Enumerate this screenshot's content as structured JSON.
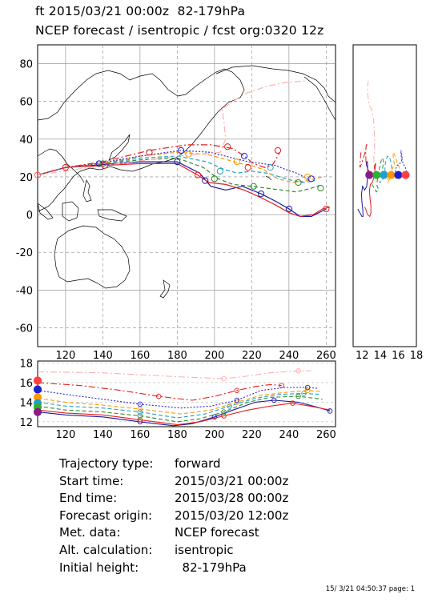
{
  "header": {
    "line1": "ft 2015/03/21 00:00z  82-179hPa",
    "line2": "NCEP forecast / isentropic / fcst org:0320 12z"
  },
  "chart_data": [
    {
      "type": "line",
      "name": "map",
      "xlim": [
        105,
        265
      ],
      "ylim": [
        -70,
        90
      ],
      "x_ticks": [
        120,
        140,
        160,
        180,
        200,
        220,
        240,
        260
      ],
      "y_ticks": [
        -60,
        -40,
        -20,
        0,
        20,
        40,
        60,
        80
      ],
      "grid": true,
      "series": [
        {
          "color": "#1a1aa0",
          "style": "solid",
          "points": [
            [
              105,
              21
            ],
            [
              120,
              25
            ],
            [
              140,
              26.5
            ],
            [
              160,
              28
            ],
            [
              180,
              28
            ],
            [
              192,
              22
            ],
            [
              198,
              15
            ],
            [
              206,
              13
            ],
            [
              215,
              15
            ],
            [
              225,
              11
            ],
            [
              233,
              7
            ],
            [
              240,
              3
            ],
            [
              246,
              -1
            ],
            [
              252,
              -1
            ],
            [
              256,
              1
            ],
            [
              260,
              3
            ]
          ]
        },
        {
          "color": "#e61e1e",
          "style": "solid",
          "points": [
            [
              105,
              21
            ],
            [
              120,
              25
            ],
            [
              140,
              26
            ],
            [
              160,
              27
            ],
            [
              180,
              27
            ],
            [
              191,
              21
            ],
            [
              197,
              17
            ],
            [
              206,
              16
            ],
            [
              216,
              13
            ],
            [
              225,
              9
            ],
            [
              233,
              5
            ],
            [
              240,
              1
            ],
            [
              246,
              -1
            ],
            [
              253,
              0
            ],
            [
              258,
              3
            ],
            [
              262,
              4
            ]
          ]
        },
        {
          "color": "#2e8b2e",
          "style": "dashed",
          "points": [
            [
              105,
              21
            ],
            [
              120,
              25
            ],
            [
              140,
              27
            ],
            [
              160,
              29
            ],
            [
              180,
              30
            ],
            [
              194,
              25
            ],
            [
              202,
              19
            ],
            [
              210,
              16
            ],
            [
              220,
              15
            ],
            [
              228,
              14
            ],
            [
              236,
              13
            ],
            [
              244,
              12
            ],
            [
              252,
              14
            ],
            [
              258,
              16
            ]
          ]
        },
        {
          "color": "#20a0c8",
          "style": "dashed",
          "points": [
            [
              105,
              21
            ],
            [
              120,
              25
            ],
            [
              140,
              27
            ],
            [
              160,
              30
            ],
            [
              180,
              31
            ],
            [
              196,
              28
            ],
            [
              205,
              24
            ],
            [
              212,
              22
            ],
            [
              220,
              23
            ],
            [
              228,
              22
            ],
            [
              235,
              20
            ],
            [
              242,
              18
            ],
            [
              248,
              17
            ],
            [
              254,
              18
            ]
          ]
        },
        {
          "color": "#ff9900",
          "style": "dashed",
          "points": [
            [
              105,
              21
            ],
            [
              120,
              25
            ],
            [
              140,
              27
            ],
            [
              160,
              31
            ],
            [
              180,
              33
            ],
            [
              196,
              32
            ],
            [
              207,
              29
            ],
            [
              214,
              27
            ],
            [
              220,
              26
            ],
            [
              226,
              24
            ],
            [
              234,
              19
            ],
            [
              242,
              17
            ],
            [
              250,
              18
            ],
            [
              258,
              20
            ]
          ]
        },
        {
          "color": "#2828d8",
          "style": "dotted",
          "points": [
            [
              105,
              21
            ],
            [
              120,
              25
            ],
            [
              137,
              27
            ],
            [
              160,
              31
            ],
            [
              182,
              34
            ],
            [
              198,
              33
            ],
            [
              210,
              30
            ],
            [
              218,
              28
            ],
            [
              226,
              27
            ],
            [
              233,
              26
            ],
            [
              238,
              24
            ],
            [
              244,
              22
            ],
            [
              250,
              19
            ]
          ]
        },
        {
          "color": "#e61e1e",
          "style": "dashdot",
          "points": [
            [
              105,
              21
            ],
            [
              120,
              25
            ],
            [
              140,
              28
            ],
            [
              165,
              34
            ],
            [
              185,
              37
            ],
            [
              198,
              37
            ],
            [
              210,
              35
            ],
            [
              216,
              31
            ],
            [
              221,
              27
            ],
            [
              227,
              25
            ],
            [
              231,
              26
            ],
            [
              234,
              31
            ],
            [
              235,
              33
            ]
          ]
        },
        {
          "color": "#ffb0b0",
          "style": "dashdot",
          "points": [
            [
              105,
              21
            ],
            [
              140,
              26
            ],
            [
              180,
              31
            ],
            [
              203,
              33
            ],
            [
              206,
              40
            ],
            [
              205,
              50
            ],
            [
              204,
              56
            ],
            [
              207,
              58
            ],
            [
              216,
              64
            ],
            [
              228,
              68
            ],
            [
              238,
              70
            ],
            [
              250,
              71
            ]
          ]
        }
      ],
      "markers": [
        {
          "x": 105,
          "y": 21,
          "color": "#ff6060"
        },
        {
          "x": 120,
          "y": 25,
          "color": "#e61e1e"
        },
        {
          "x": 138,
          "y": 27,
          "color": "#1a1aa0"
        },
        {
          "x": 140,
          "y": 27,
          "color": "#2e8b2e"
        },
        {
          "x": 141,
          "y": 26,
          "color": "#e61e1e"
        },
        {
          "x": 165,
          "y": 33,
          "color": "#e61e1e"
        },
        {
          "x": 180,
          "y": 28,
          "color": "#1a1aa0"
        },
        {
          "x": 182,
          "y": 34,
          "color": "#2828d8"
        },
        {
          "x": 186,
          "y": 32,
          "color": "#ff9900"
        },
        {
          "x": 191,
          "y": 21,
          "color": "#e61e1e"
        },
        {
          "x": 195,
          "y": 18,
          "color": "#1a1aa0"
        },
        {
          "x": 200,
          "y": 19,
          "color": "#2e8b2e"
        },
        {
          "x": 203,
          "y": 23,
          "color": "#20a0c8"
        },
        {
          "x": 207,
          "y": 36,
          "color": "#e61e1e"
        },
        {
          "x": 212,
          "y": 28,
          "color": "#ff9900"
        },
        {
          "x": 216,
          "y": 31,
          "color": "#2828d8"
        },
        {
          "x": 218,
          "y": 25,
          "color": "#e61e1e"
        },
        {
          "x": 221,
          "y": 15,
          "color": "#2e8b2e"
        },
        {
          "x": 225,
          "y": 11,
          "color": "#1a1aa0"
        },
        {
          "x": 230,
          "y": 25,
          "color": "#20a0c8"
        },
        {
          "x": 234,
          "y": 34,
          "color": "#e61e1e"
        },
        {
          "x": 240,
          "y": 3,
          "color": "#1a1aa0"
        },
        {
          "x": 245,
          "y": 17,
          "color": "#2e8b2e"
        },
        {
          "x": 250,
          "y": 20,
          "color": "#ff9900"
        },
        {
          "x": 252,
          "y": 19,
          "color": "#2828d8"
        },
        {
          "x": 257,
          "y": 14,
          "color": "#2e8b2e"
        },
        {
          "x": 260,
          "y": 3,
          "color": "#e61e1e"
        }
      ]
    },
    {
      "type": "line",
      "name": "vertical-side",
      "xlim": [
        11,
        18
      ],
      "x_ticks": [
        12,
        14,
        16,
        18
      ],
      "ylim": [
        -70,
        90
      ],
      "note_markers_at_start": [
        12.8,
        13.6,
        14.4,
        15.2,
        16.0,
        16.8
      ]
    },
    {
      "type": "line",
      "name": "height-section",
      "xlim": [
        105,
        265
      ],
      "ylim": [
        11.5,
        18.2
      ],
      "x_ticks": [
        120,
        140,
        160,
        180,
        200,
        220,
        240,
        260
      ],
      "y_ticks": [
        12,
        14,
        16,
        18
      ],
      "series": [
        {
          "color": "#1a1aa0",
          "style": "solid",
          "points": [
            [
              105,
              13.0
            ],
            [
              120,
              12.7
            ],
            [
              140,
              12.5
            ],
            [
              160,
              12.0
            ],
            [
              178,
              11.6
            ],
            [
              188,
              11.8
            ],
            [
              200,
              12.5
            ],
            [
              210,
              13.2
            ],
            [
              222,
              14.0
            ],
            [
              232,
              14.2
            ],
            [
              245,
              14.0
            ],
            [
              255,
              13.5
            ],
            [
              262,
              13.1
            ]
          ]
        },
        {
          "color": "#e61e1e",
          "style": "solid",
          "points": [
            [
              105,
              13.2
            ],
            [
              120,
              12.9
            ],
            [
              140,
              12.7
            ],
            [
              160,
              12.2
            ],
            [
              180,
              11.7
            ],
            [
              192,
              12.0
            ],
            [
              205,
              12.6
            ],
            [
              218,
              13.2
            ],
            [
              230,
              13.6
            ],
            [
              242,
              13.9
            ],
            [
              254,
              13.5
            ],
            [
              262,
              13.2
            ]
          ]
        },
        {
          "color": "#2e8b2e",
          "style": "dashed",
          "points": [
            [
              105,
              13.6
            ],
            [
              120,
              13.2
            ],
            [
              140,
              13.0
            ],
            [
              160,
              12.6
            ],
            [
              180,
              12.0
            ],
            [
              192,
              12.3
            ],
            [
              205,
              13.0
            ],
            [
              218,
              14.0
            ],
            [
              230,
              14.5
            ],
            [
              245,
              14.6
            ],
            [
              258,
              14.3
            ]
          ]
        },
        {
          "color": "#20a0c8",
          "style": "dashed",
          "points": [
            [
              105,
              14.0
            ],
            [
              120,
              13.6
            ],
            [
              140,
              13.4
            ],
            [
              160,
              13.0
            ],
            [
              180,
              12.4
            ],
            [
              195,
              12.8
            ],
            [
              208,
              13.6
            ],
            [
              222,
              14.4
            ],
            [
              235,
              14.8
            ],
            [
              248,
              14.9
            ],
            [
              256,
              14.8
            ]
          ]
        },
        {
          "color": "#ff9900",
          "style": "dashed",
          "points": [
            [
              105,
              14.4
            ],
            [
              120,
              14.0
            ],
            [
              140,
              13.7
            ],
            [
              160,
              13.3
            ],
            [
              182,
              12.8
            ],
            [
              198,
              13.2
            ],
            [
              212,
              14.0
            ],
            [
              225,
              14.7
            ],
            [
              238,
              15.0
            ],
            [
              250,
              15.2
            ],
            [
              258,
              15.1
            ]
          ]
        },
        {
          "color": "#2828d8",
          "style": "dotted",
          "points": [
            [
              105,
              15.2
            ],
            [
              120,
              14.8
            ],
            [
              140,
              14.3
            ],
            [
              160,
              13.8
            ],
            [
              182,
              13.4
            ],
            [
              198,
              13.6
            ],
            [
              212,
              14.2
            ],
            [
              225,
              15.2
            ],
            [
              238,
              15.5
            ],
            [
              250,
              15.5
            ],
            [
              256,
              15.4
            ]
          ]
        },
        {
          "color": "#e61e1e",
          "style": "dashdot",
          "points": [
            [
              105,
              16.0
            ],
            [
              128,
              15.7
            ],
            [
              150,
              15.2
            ],
            [
              170,
              14.6
            ],
            [
              188,
              14.2
            ],
            [
              200,
              14.6
            ],
            [
              212,
              15.2
            ],
            [
              222,
              15.6
            ],
            [
              230,
              15.8
            ],
            [
              236,
              15.7
            ]
          ]
        },
        {
          "color": "#ffb0b0",
          "style": "dashdot",
          "points": [
            [
              105,
              17.1
            ],
            [
              140,
              17.0
            ],
            [
              180,
              16.6
            ],
            [
              205,
              16.4
            ],
            [
              215,
              16.6
            ],
            [
              230,
              17.0
            ],
            [
              245,
              17.2
            ],
            [
              252,
              17.2
            ]
          ]
        }
      ],
      "start_markers": [
        {
          "y": 16.2,
          "color": "#ff4040"
        },
        {
          "y": 15.3,
          "color": "#2020d0"
        },
        {
          "y": 14.5,
          "color": "#ff9900"
        },
        {
          "y": 13.9,
          "color": "#20a0c8"
        },
        {
          "y": 13.5,
          "color": "#30b030"
        },
        {
          "y": 13.0,
          "color": "#8a1a8a"
        }
      ]
    }
  ],
  "info": [
    {
      "label": "Trajectory type:",
      "value": "forward"
    },
    {
      "label": "Start time:",
      "value": "2015/03/21 00:00z"
    },
    {
      "label": "End time:",
      "value": "2015/03/28 00:00z"
    },
    {
      "label": "Forecast origin:",
      "value": "2015/03/20 12:00z"
    },
    {
      "label": "Met. data:",
      "value": "NCEP forecast"
    },
    {
      "label": "Alt. calculation:",
      "value": "isentropic"
    },
    {
      "label": "Initial height:",
      "value": "  82-179hPa"
    }
  ],
  "footer": "15/ 3/21 04:50:37 page: 1"
}
